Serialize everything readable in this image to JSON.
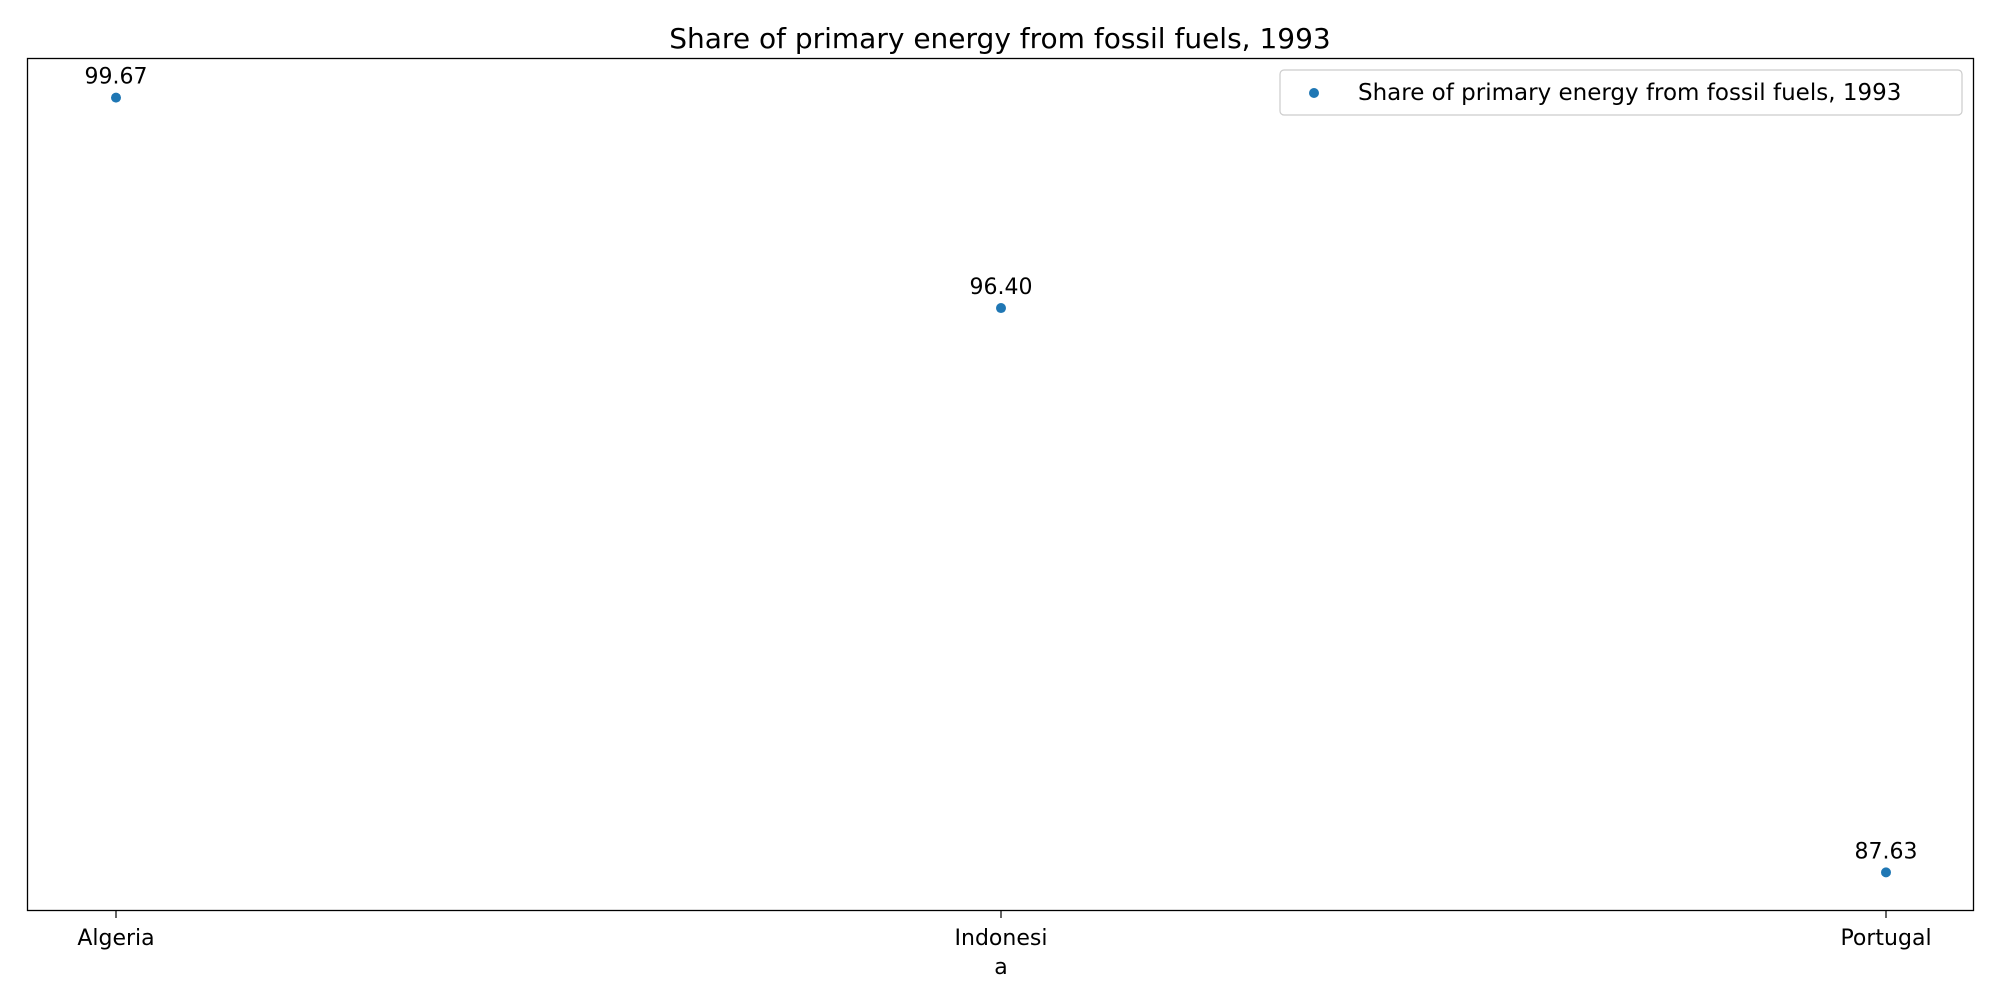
{
  "chart_data": {
    "type": "scatter",
    "title": "Share of primary energy from fossil fuels, 1993",
    "categories": [
      "Algeria",
      "Indonesia",
      "Portugal"
    ],
    "category_tick_lines": [
      [
        "Algeria"
      ],
      [
        "Indonesi",
        "a"
      ],
      [
        "Portugal"
      ]
    ],
    "series": [
      {
        "name": "Share of primary energy from fossil fuels, 1993",
        "values": [
          99.67,
          96.4,
          87.63
        ],
        "value_labels": [
          "99.67",
          "96.40",
          "87.63"
        ],
        "color": "#1f77b4"
      }
    ],
    "xlabel": "",
    "ylabel": "",
    "ylim": [
      87.03,
      100.27
    ],
    "y_ticks_visible": false,
    "grid": false,
    "legend_position": "top-right"
  }
}
